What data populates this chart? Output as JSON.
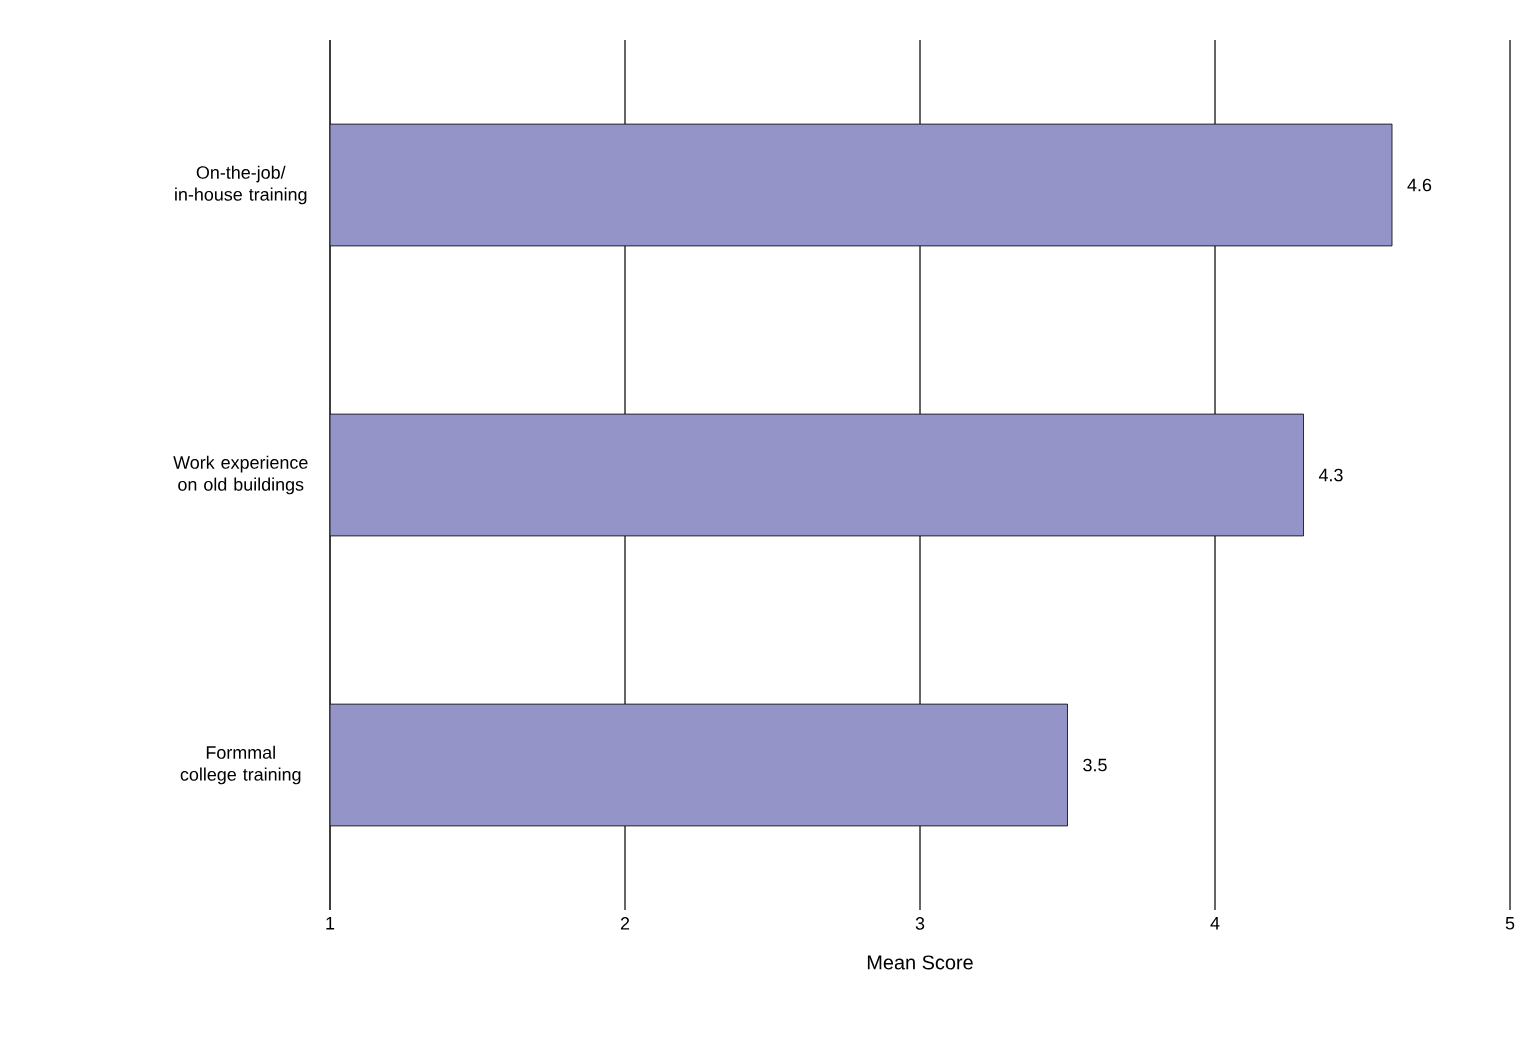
{
  "chart_data": {
    "type": "bar",
    "orientation": "horizontal",
    "xlabel": "Mean Score",
    "categories": [
      "On-the-job/ in-house training",
      "Work experience on old buildings",
      "Formmal college training"
    ],
    "values": [
      4.6,
      4.3,
      3.5
    ],
    "color": "#9494c8",
    "data_labels": true,
    "xlim": [
      1,
      5
    ],
    "xticks": [
      1,
      2,
      3,
      4,
      5
    ],
    "grid": "x"
  }
}
